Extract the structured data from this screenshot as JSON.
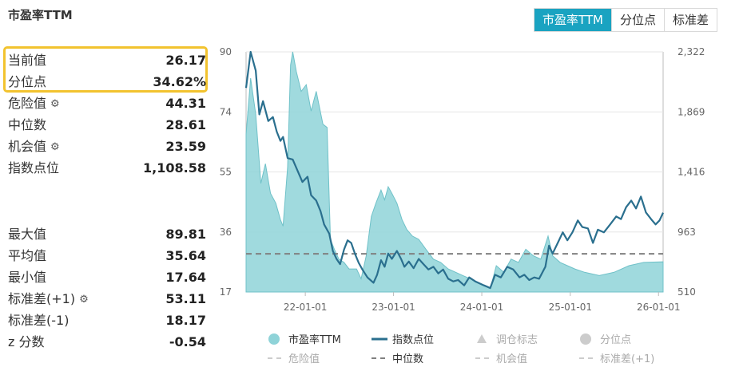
{
  "header": {
    "title": "市盈率TTM"
  },
  "tabs": [
    {
      "label": "市盈率TTM",
      "active": true
    },
    {
      "label": "分位点",
      "active": false
    },
    {
      "label": "标准差",
      "active": false
    }
  ],
  "stats": {
    "current": {
      "label": "当前值",
      "value": "26.17"
    },
    "percentile": {
      "label": "分位点",
      "value": "34.62%"
    },
    "danger": {
      "label": "危险值",
      "value": "44.31"
    },
    "median": {
      "label": "中位数",
      "value": "28.61"
    },
    "opportunity": {
      "label": "机会值",
      "value": "23.59"
    },
    "index_points": {
      "label": "指数点位",
      "value": "1,108.58"
    },
    "max": {
      "label": "最大值",
      "value": "89.81"
    },
    "mean": {
      "label": "平均值",
      "value": "35.64"
    },
    "min": {
      "label": "最小值",
      "value": "17.64"
    },
    "std_plus": {
      "label": "标准差(+1)",
      "value": "53.11"
    },
    "std_minus": {
      "label": "标准差(-1)",
      "value": "18.17"
    },
    "zscore": {
      "label": "z 分数",
      "value": "-0.54"
    }
  },
  "colors": {
    "pe_area": "#8fd3d8",
    "pe_area_stroke": "#6fc1c8",
    "index_line": "#2a6f8e",
    "median_line": "#808080",
    "accent": "#1aa3c1",
    "highlight": "#f2c32f"
  },
  "chart_data": {
    "type": "area",
    "x_ticks": [
      "22-01-01",
      "23-01-01",
      "24-01-01",
      "25-01-01",
      "26-01-01"
    ],
    "left_axis": {
      "ticks": [
        "90",
        "74",
        "55",
        "36",
        "17"
      ],
      "range": [
        17,
        90
      ]
    },
    "right_axis": {
      "ticks": [
        "2,322",
        "1,869",
        "1,416",
        "963",
        "510"
      ],
      "range": [
        510,
        2322
      ]
    },
    "reference_lines": {
      "median": 28.61
    },
    "x_range": [
      "2021-05-01",
      "2026-01-20"
    ],
    "series": [
      {
        "name": "市盈率TTM",
        "axis": "left",
        "points": [
          [
            "2021-05-01",
            65
          ],
          [
            "2021-05-20",
            82
          ],
          [
            "2021-06-10",
            71
          ],
          [
            "2021-07-01",
            50
          ],
          [
            "2021-07-20",
            56
          ],
          [
            "2021-08-10",
            47
          ],
          [
            "2021-09-01",
            44
          ],
          [
            "2021-09-20",
            39
          ],
          [
            "2021-10-01",
            37
          ],
          [
            "2021-10-20",
            55
          ],
          [
            "2021-11-01",
            86
          ],
          [
            "2021-11-10",
            90
          ],
          [
            "2021-11-25",
            84
          ],
          [
            "2021-12-15",
            78
          ],
          [
            "2022-01-05",
            80
          ],
          [
            "2022-01-25",
            72
          ],
          [
            "2022-02-15",
            78
          ],
          [
            "2022-03-01",
            73
          ],
          [
            "2022-03-15",
            68
          ],
          [
            "2022-04-01",
            67
          ],
          [
            "2022-04-15",
            33
          ],
          [
            "2022-05-01",
            30
          ],
          [
            "2022-05-20",
            27
          ],
          [
            "2022-06-10",
            26
          ],
          [
            "2022-07-01",
            24
          ],
          [
            "2022-08-01",
            24
          ],
          [
            "2022-08-20",
            21
          ],
          [
            "2022-09-10",
            28
          ],
          [
            "2022-10-01",
            40
          ],
          [
            "2022-10-20",
            44
          ],
          [
            "2022-11-10",
            48
          ],
          [
            "2022-11-25",
            45
          ],
          [
            "2022-12-10",
            49
          ],
          [
            "2022-12-25",
            47
          ],
          [
            "2023-01-15",
            44
          ],
          [
            "2023-02-05",
            39
          ],
          [
            "2023-02-25",
            36
          ],
          [
            "2023-03-20",
            34
          ],
          [
            "2023-04-15",
            33
          ],
          [
            "2023-05-15",
            30
          ],
          [
            "2023-06-15",
            27
          ],
          [
            "2023-07-15",
            26
          ],
          [
            "2023-08-15",
            24
          ],
          [
            "2023-09-15",
            23
          ],
          [
            "2023-10-15",
            22
          ],
          [
            "2023-11-15",
            21
          ],
          [
            "2023-12-15",
            20
          ],
          [
            "2024-01-10",
            19
          ],
          [
            "2024-02-05",
            18
          ],
          [
            "2024-03-01",
            25
          ],
          [
            "2024-04-01",
            23
          ],
          [
            "2024-05-01",
            27
          ],
          [
            "2024-06-01",
            26
          ],
          [
            "2024-07-01",
            30
          ],
          [
            "2024-08-01",
            28
          ],
          [
            "2024-09-01",
            27
          ],
          [
            "2024-10-01",
            34
          ],
          [
            "2024-10-20",
            28
          ],
          [
            "2024-11-20",
            26
          ],
          [
            "2024-12-20",
            25
          ],
          [
            "2025-01-20",
            24
          ],
          [
            "2025-03-01",
            23
          ],
          [
            "2025-05-01",
            22
          ],
          [
            "2025-07-01",
            23
          ],
          [
            "2025-09-01",
            25
          ],
          [
            "2025-11-01",
            26
          ],
          [
            "2026-01-20",
            26.17
          ]
        ]
      },
      {
        "name": "指数点位",
        "axis": "right",
        "points": [
          [
            "2021-05-01",
            2050
          ],
          [
            "2021-05-20",
            2322
          ],
          [
            "2021-06-10",
            2180
          ],
          [
            "2021-06-25",
            1850
          ],
          [
            "2021-07-10",
            1950
          ],
          [
            "2021-08-01",
            1800
          ],
          [
            "2021-08-20",
            1830
          ],
          [
            "2021-09-05",
            1720
          ],
          [
            "2021-09-20",
            1650
          ],
          [
            "2021-10-01",
            1680
          ],
          [
            "2021-10-20",
            1520
          ],
          [
            "2021-11-10",
            1510
          ],
          [
            "2021-12-01",
            1420
          ],
          [
            "2021-12-20",
            1340
          ],
          [
            "2022-01-10",
            1380
          ],
          [
            "2022-01-25",
            1240
          ],
          [
            "2022-02-15",
            1200
          ],
          [
            "2022-03-05",
            1120
          ],
          [
            "2022-03-20",
            1020
          ],
          [
            "2022-04-10",
            950
          ],
          [
            "2022-04-25",
            820
          ],
          [
            "2022-05-10",
            760
          ],
          [
            "2022-05-25",
            720
          ],
          [
            "2022-06-10",
            830
          ],
          [
            "2022-06-25",
            900
          ],
          [
            "2022-07-10",
            880
          ],
          [
            "2022-07-25",
            800
          ],
          [
            "2022-08-10",
            730
          ],
          [
            "2022-08-25",
            680
          ],
          [
            "2022-09-15",
            620
          ],
          [
            "2022-10-10",
            580
          ],
          [
            "2022-10-25",
            640
          ],
          [
            "2022-11-10",
            750
          ],
          [
            "2022-11-25",
            700
          ],
          [
            "2022-12-10",
            800
          ],
          [
            "2022-12-25",
            760
          ],
          [
            "2023-01-15",
            820
          ],
          [
            "2023-02-01",
            760
          ],
          [
            "2023-02-15",
            700
          ],
          [
            "2023-03-05",
            740
          ],
          [
            "2023-03-25",
            690
          ],
          [
            "2023-04-15",
            760
          ],
          [
            "2023-05-05",
            720
          ],
          [
            "2023-05-25",
            680
          ],
          [
            "2023-06-15",
            700
          ],
          [
            "2023-07-05",
            650
          ],
          [
            "2023-07-25",
            680
          ],
          [
            "2023-08-15",
            610
          ],
          [
            "2023-09-05",
            590
          ],
          [
            "2023-09-25",
            600
          ],
          [
            "2023-10-20",
            560
          ],
          [
            "2023-11-10",
            620
          ],
          [
            "2023-12-05",
            590
          ],
          [
            "2024-01-10",
            560
          ],
          [
            "2024-02-05",
            540
          ],
          [
            "2024-02-25",
            640
          ],
          [
            "2024-03-20",
            620
          ],
          [
            "2024-04-15",
            700
          ],
          [
            "2024-05-10",
            680
          ],
          [
            "2024-06-05",
            620
          ],
          [
            "2024-06-25",
            640
          ],
          [
            "2024-07-15",
            600
          ],
          [
            "2024-08-05",
            620
          ],
          [
            "2024-08-25",
            610
          ],
          [
            "2024-09-20",
            700
          ],
          [
            "2024-10-05",
            860
          ],
          [
            "2024-10-20",
            800
          ],
          [
            "2024-11-10",
            880
          ],
          [
            "2024-12-01",
            960
          ],
          [
            "2024-12-20",
            900
          ],
          [
            "2025-01-10",
            960
          ],
          [
            "2025-02-01",
            1050
          ],
          [
            "2025-02-20",
            1000
          ],
          [
            "2025-03-15",
            990
          ],
          [
            "2025-04-05",
            880
          ],
          [
            "2025-04-25",
            980
          ],
          [
            "2025-05-20",
            960
          ],
          [
            "2025-06-15",
            1020
          ],
          [
            "2025-07-10",
            1080
          ],
          [
            "2025-07-30",
            1060
          ],
          [
            "2025-08-20",
            1150
          ],
          [
            "2025-09-10",
            1200
          ],
          [
            "2025-09-30",
            1140
          ],
          [
            "2025-10-20",
            1230
          ],
          [
            "2025-11-10",
            1110
          ],
          [
            "2025-12-01",
            1060
          ],
          [
            "2025-12-20",
            1020
          ],
          [
            "2026-01-05",
            1050
          ],
          [
            "2026-01-20",
            1108.58
          ]
        ]
      }
    ]
  },
  "legend": {
    "row1": [
      {
        "label": "市盈率TTM",
        "marker": "dot",
        "color": "#8fd3d8",
        "active": true
      },
      {
        "label": "指数点位",
        "marker": "line",
        "color": "#2a6f8e",
        "active": true
      },
      {
        "label": "调仓标志",
        "marker": "triangle",
        "color": "#cccccc",
        "active": false
      },
      {
        "label": "分位点",
        "marker": "dot",
        "color": "#cccccc",
        "active": false
      }
    ],
    "row2": [
      {
        "label": "危险值",
        "marker": "dash",
        "color": "#cccccc",
        "active": false
      },
      {
        "label": "中位数",
        "marker": "dash",
        "color": "#808080",
        "active": true
      },
      {
        "label": "机会值",
        "marker": "dash",
        "color": "#cccccc",
        "active": false
      },
      {
        "label": "标准差(+1)",
        "marker": "dash",
        "color": "#cccccc",
        "active": false
      }
    ]
  }
}
